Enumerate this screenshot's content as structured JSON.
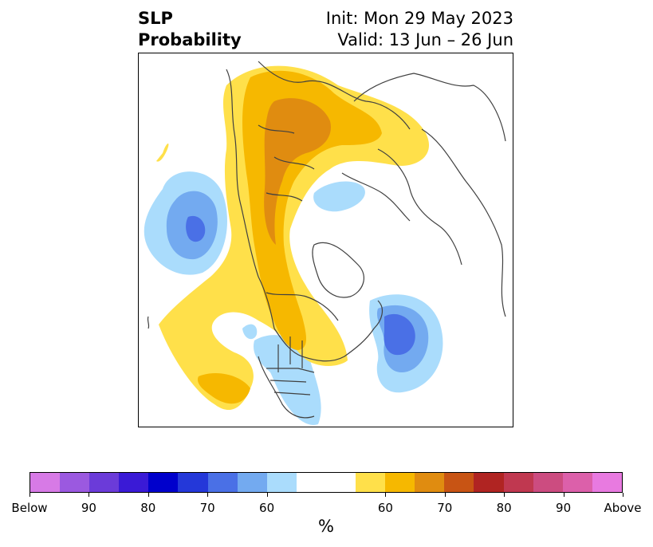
{
  "header": {
    "title_line1": "SLP",
    "title_line2": "Probability",
    "init_text": "Init: Mon 29 May 2023",
    "valid_text": "Valid: 13 Jun – 26 Jun"
  },
  "colorbar": {
    "unit": "%",
    "colors": [
      "#d77ae6",
      "#9b59e0",
      "#6b3bd9",
      "#3a1ad6",
      "#0000cc",
      "#2438d9",
      "#4a70e6",
      "#73aaf0",
      "#aadcfc",
      "#ffffff",
      "#ffe04a",
      "#f6b800",
      "#e08c10",
      "#c85414",
      "#b02422",
      "#c03850",
      "#cc4c80",
      "#dc60aa",
      "#e87ae0"
    ],
    "tick_labels": [
      "Below",
      "90",
      "80",
      "70",
      "60",
      "60",
      "70",
      "80",
      "90",
      "Above"
    ]
  },
  "map": {
    "colors": {
      "blue_light": "#aadcfc",
      "blue_mid": "#73aaf0",
      "blue_dark": "#4a70e6",
      "yellow": "#ffe04a",
      "orange": "#f6b800",
      "dark_orange": "#e08c10",
      "coast": "#404040"
    }
  }
}
